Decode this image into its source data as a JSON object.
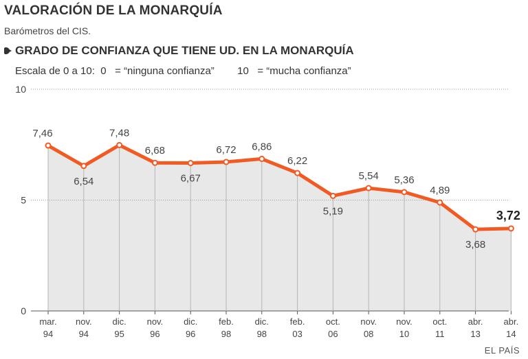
{
  "header": {
    "title": "VALORACIÓN DE LA MONARQUÍA",
    "subtitle": "Barómetros del CIS."
  },
  "section": {
    "title": "GRADO DE CONFIANZA QUE TIENE UD. EN LA MONARQUÍA",
    "scale_prefix": "Escala de 0 a 10:",
    "scale_low": "0   = “ninguna confianza”",
    "scale_high": "10   = “mucha confianza”"
  },
  "credit": "EL PAÍS",
  "colors": {
    "line": "#f15a22",
    "area": "#e8e8e8",
    "grid": "#999999"
  },
  "chart_data": {
    "type": "area",
    "title": "GRADO DE CONFIANZA QUE TIENE UD. EN LA MONARQUÍA",
    "ylim": [
      0,
      10
    ],
    "yticks": [
      "0",
      "5",
      "10"
    ],
    "categories": [
      [
        "mar.",
        "94"
      ],
      [
        "nov.",
        "94"
      ],
      [
        "dic.",
        "95"
      ],
      [
        "nov.",
        "96"
      ],
      [
        "dic.",
        "96"
      ],
      [
        "feb.",
        "98"
      ],
      [
        "dic.",
        "98"
      ],
      [
        "feb.",
        "03"
      ],
      [
        "oct.",
        "06"
      ],
      [
        "nov.",
        "08"
      ],
      [
        "nov.",
        "10"
      ],
      [
        "oct.",
        "11"
      ],
      [
        "abr.",
        "13"
      ],
      [
        "abr.",
        "14"
      ]
    ],
    "values": [
      7.46,
      6.54,
      7.48,
      6.68,
      6.67,
      6.72,
      6.86,
      6.22,
      5.19,
      5.54,
      5.36,
      4.89,
      3.68,
      3.72
    ],
    "labels": [
      "7,46",
      "6,54",
      "7,48",
      "6,68",
      "6,67",
      "6,72",
      "6,86",
      "6,22",
      "5,19",
      "5,54",
      "5,36",
      "4,89",
      "3,68",
      "3,72"
    ],
    "label_position": [
      "above",
      "below",
      "above",
      "above",
      "below",
      "above",
      "above",
      "above",
      "below",
      "above",
      "above",
      "above",
      "below",
      "above"
    ],
    "highlight_last": true
  }
}
